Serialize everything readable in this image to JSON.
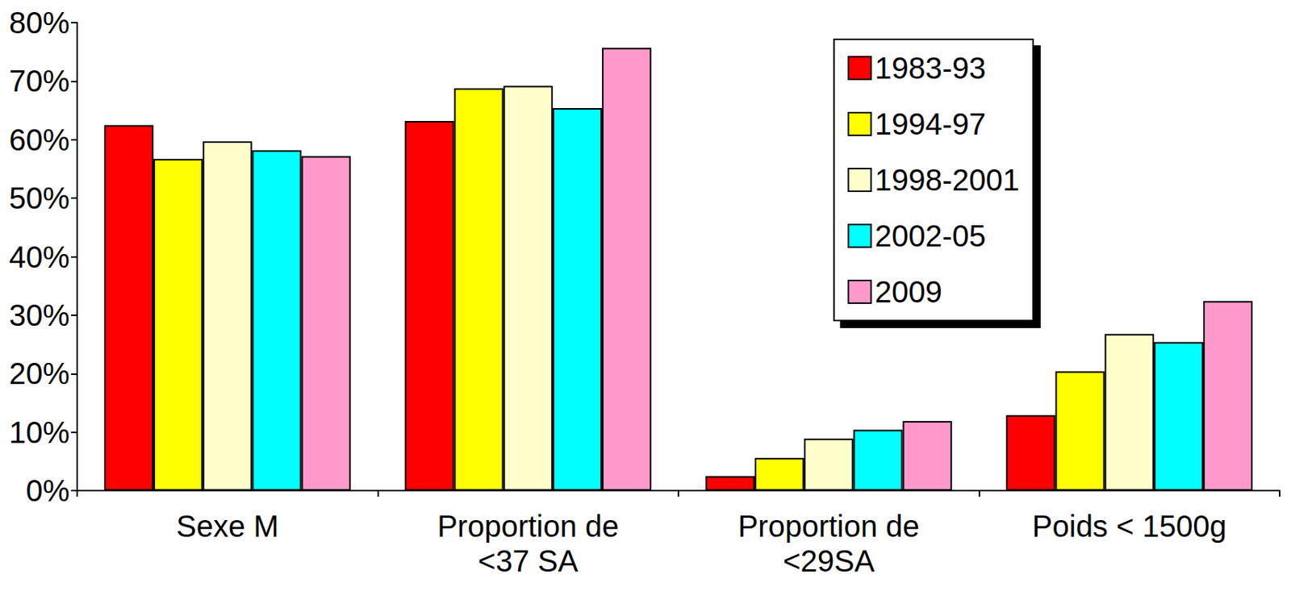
{
  "chart_data": {
    "type": "bar",
    "categories": [
      "Sexe M",
      "Proportion de <37 SA",
      "Proportion de <29SA",
      "Poids < 1500g"
    ],
    "series": [
      {
        "name": "1983-93",
        "color": "#ff0000",
        "values": [
          62.5,
          63.2,
          2.5,
          12.9
        ]
      },
      {
        "name": "1994-97",
        "color": "#ffff00",
        "values": [
          56.7,
          68.8,
          5.6,
          20.4
        ]
      },
      {
        "name": "1998-2001",
        "color": "#ffffcc",
        "values": [
          59.7,
          69.2,
          8.9,
          26.8
        ]
      },
      {
        "name": "2002-05",
        "color": "#00ffff",
        "values": [
          58.2,
          65.4,
          10.4,
          25.4
        ]
      },
      {
        "name": "2009",
        "color": "#ff99cc",
        "values": [
          57.2,
          75.7,
          11.9,
          32.4
        ]
      }
    ],
    "ylim": [
      0,
      80
    ],
    "yticks": [
      {
        "value": 0,
        "label": "0%"
      },
      {
        "value": 10,
        "label": "10%"
      },
      {
        "value": 20,
        "label": "20%"
      },
      {
        "value": 30,
        "label": "30%"
      },
      {
        "value": 40,
        "label": "40%"
      },
      {
        "value": 50,
        "label": "50%"
      },
      {
        "value": 60,
        "label": "60%"
      },
      {
        "value": 70,
        "label": "70%"
      },
      {
        "value": 80,
        "label": "80%"
      }
    ],
    "grid": false,
    "legend": "upper right"
  }
}
